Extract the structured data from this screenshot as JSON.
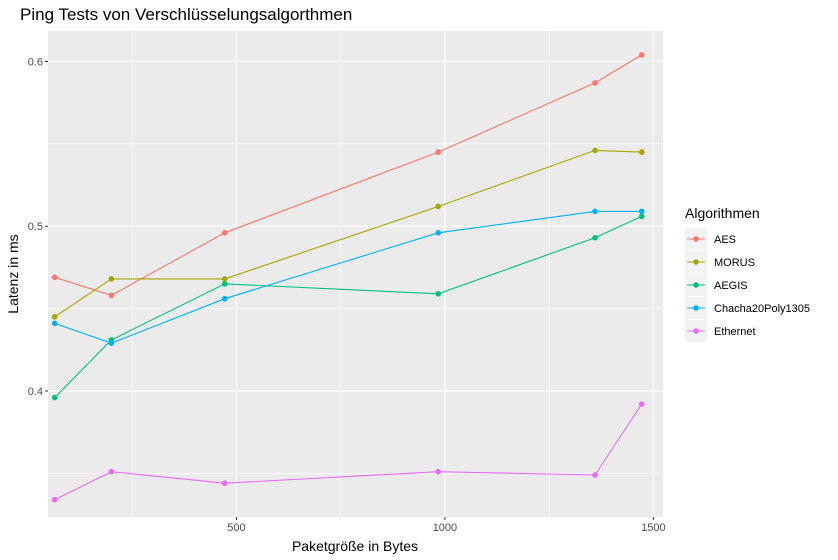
{
  "chart_data": {
    "type": "line",
    "title": "Ping Tests von Verschlüsselungsalgorthmen",
    "xlabel": "Paketgröße in Bytes",
    "ylabel": "Latenz in ms",
    "xlim": [
      48,
      1523
    ],
    "ylim": [
      0.3235,
      0.6185
    ],
    "x_ticks": [
      500,
      1000,
      1500
    ],
    "x_tick_labels": [
      "500",
      "1000",
      "1500"
    ],
    "y_ticks": [
      0.4,
      0.5,
      0.6
    ],
    "y_tick_labels": [
      "0.4",
      "0.5",
      "0.6"
    ],
    "grid": true,
    "legend_title": "Algorithmen",
    "legend_position": "right",
    "x": [
      64,
      200,
      472,
      984,
      1360,
      1472
    ],
    "series": [
      {
        "name": "AES",
        "color": "#F8766D",
        "values": [
          0.469,
          0.458,
          0.496,
          0.545,
          0.587,
          0.604
        ]
      },
      {
        "name": "MORUS",
        "color": "#A3A500",
        "values": [
          0.445,
          0.468,
          0.468,
          0.512,
          0.546,
          0.545
        ]
      },
      {
        "name": "AEGIS",
        "color": "#00BF7D",
        "values": [
          0.396,
          0.431,
          0.465,
          0.459,
          0.493,
          0.506
        ]
      },
      {
        "name": "Chacha20Poly1305",
        "color": "#00B0F6",
        "values": [
          0.441,
          0.429,
          0.456,
          0.496,
          0.509,
          0.509
        ]
      },
      {
        "name": "Ethernet",
        "color": "#E76BF3",
        "values": [
          0.334,
          0.351,
          0.344,
          0.351,
          0.349,
          0.392
        ]
      }
    ]
  }
}
